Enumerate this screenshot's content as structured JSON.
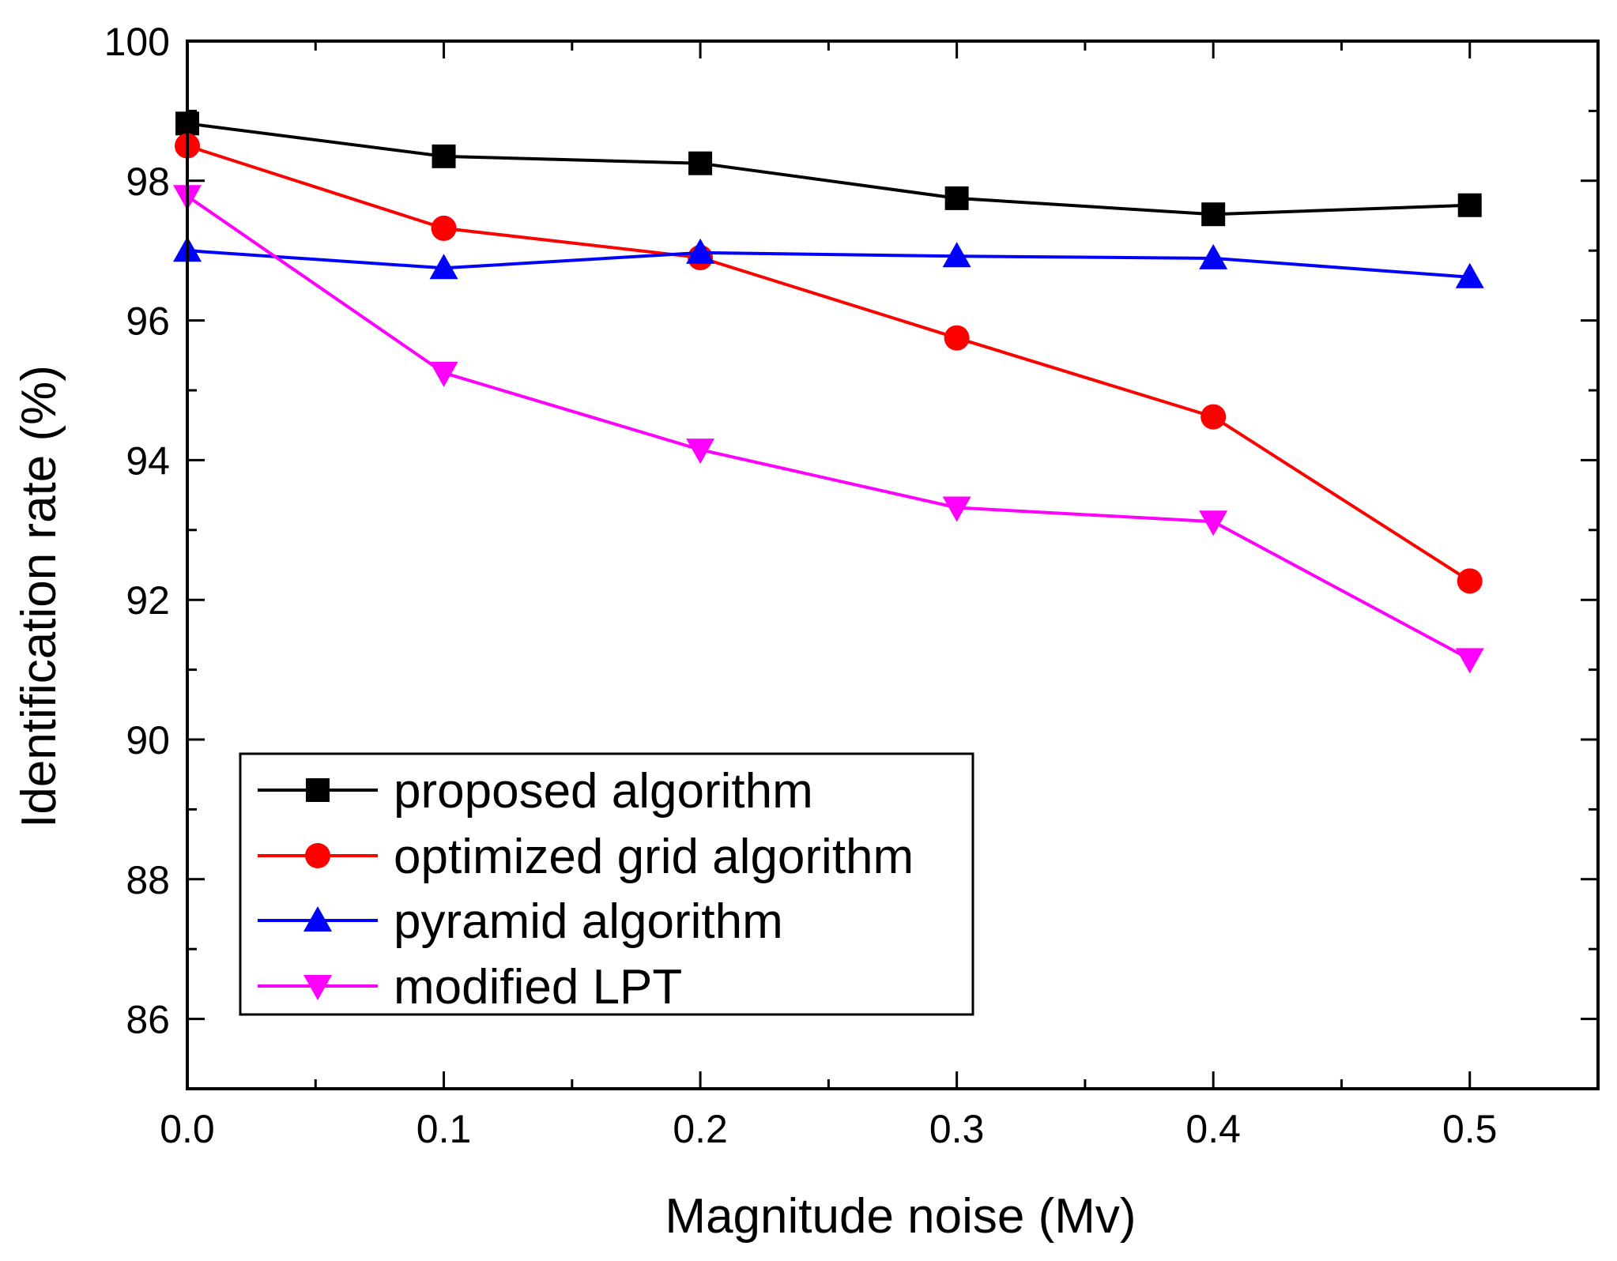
{
  "chart_data": {
    "type": "line",
    "title": "",
    "xlabel": "Magnitude noise (Mv)",
    "ylabel": "Identification rate (%)",
    "xlim": [
      0.0,
      0.55
    ],
    "ylim": [
      85,
      100
    ],
    "xticks": [
      0.0,
      0.1,
      0.2,
      0.3,
      0.4,
      0.5
    ],
    "xtick_labels": [
      "0.0",
      "0.1",
      "0.2",
      "0.3",
      "0.4",
      "0.5"
    ],
    "yticks": [
      86,
      88,
      90,
      92,
      94,
      96,
      98,
      100
    ],
    "ytick_labels": [
      "86",
      "88",
      "90",
      "92",
      "94",
      "96",
      "98",
      "100"
    ],
    "grid": false,
    "legend_position": "lower-left",
    "x": [
      0.0,
      0.1,
      0.2,
      0.3,
      0.4,
      0.5
    ],
    "series": [
      {
        "name": "proposed algorithm",
        "color": "#000000",
        "marker": "square",
        "values": [
          98.82,
          98.35,
          98.25,
          97.75,
          97.52,
          97.65
        ]
      },
      {
        "name": "optimized grid algorithm",
        "color": "#ff0000",
        "marker": "circle",
        "values": [
          98.5,
          97.32,
          96.9,
          95.75,
          94.62,
          92.27
        ]
      },
      {
        "name": "pyramid algorithm",
        "color": "#0000ff",
        "marker": "triangle-up",
        "values": [
          97.0,
          96.75,
          96.97,
          96.92,
          96.89,
          96.62
        ]
      },
      {
        "name": "modified LPT",
        "color": "#ff00ff",
        "marker": "triangle-down",
        "values": [
          97.78,
          95.25,
          94.15,
          93.32,
          93.12,
          91.15
        ]
      }
    ]
  }
}
